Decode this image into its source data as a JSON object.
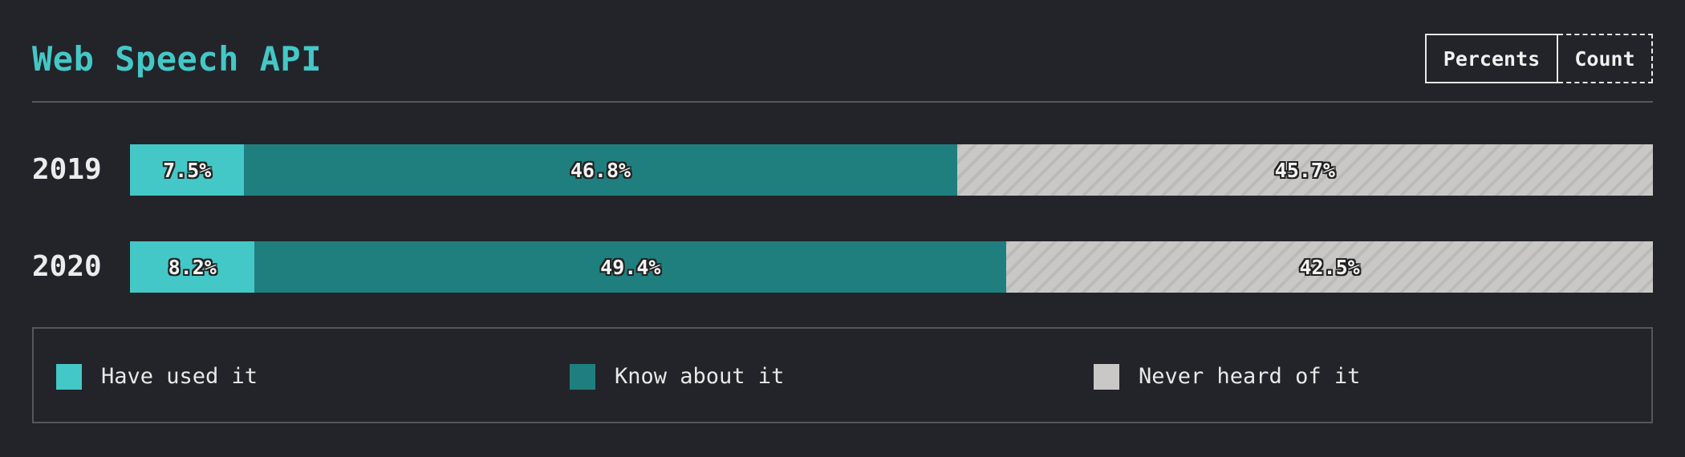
{
  "header": {
    "title": "Web Speech API",
    "toggle": {
      "percents_label": "Percents",
      "count_label": "Count",
      "selected": "Percents"
    }
  },
  "colors": {
    "have_used": "#43c8c7",
    "know_about": "#1f7f7e",
    "never_heard": "#c9c8c6",
    "background": "#232429"
  },
  "chart_data": {
    "type": "bar",
    "orientation": "horizontal",
    "stacked": true,
    "normalized": true,
    "title": "Web Speech API",
    "categories": [
      "2019",
      "2020"
    ],
    "series": [
      {
        "name": "Have used it",
        "values": [
          7.5,
          8.2
        ],
        "labels": [
          "7.5%",
          "8.2%"
        ]
      },
      {
        "name": "Know about it",
        "values": [
          46.8,
          49.4
        ],
        "labels": [
          "46.8%",
          "49.4%"
        ]
      },
      {
        "name": "Never heard of it",
        "values": [
          45.7,
          42.5
        ],
        "labels": [
          "45.7%",
          "42.5%"
        ]
      }
    ],
    "xlim": [
      0,
      100
    ],
    "legend_position": "bottom"
  },
  "legend": {
    "items": [
      {
        "label": "Have used it"
      },
      {
        "label": "Know about it"
      },
      {
        "label": "Never heard of it"
      }
    ]
  }
}
